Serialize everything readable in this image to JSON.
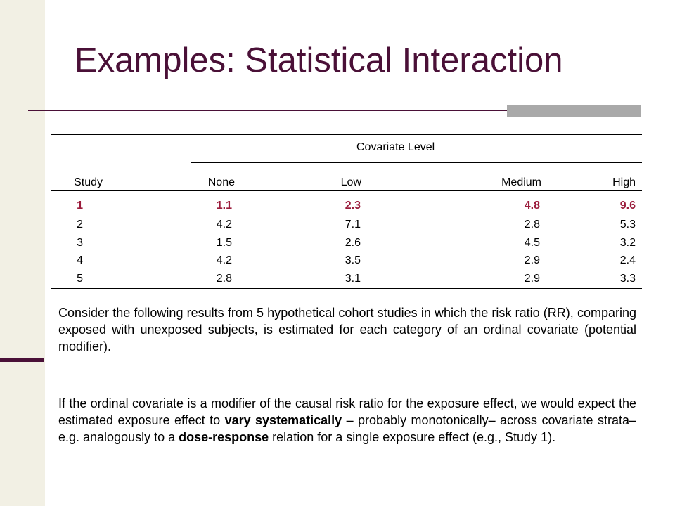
{
  "slide": {
    "title": "Examples: Statistical Interaction"
  },
  "table": {
    "group_header": "Covariate Level",
    "columns": [
      "Study",
      "None",
      "Low",
      "Medium",
      "High"
    ],
    "rows": [
      [
        "1",
        "1.1",
        "2.3",
        "4.8",
        "9.6"
      ],
      [
        "2",
        "4.2",
        "7.1",
        "2.8",
        "5.3"
      ],
      [
        "3",
        "1.5",
        "2.6",
        "4.5",
        "3.2"
      ],
      [
        "4",
        "4.2",
        "3.5",
        "2.9",
        "2.4"
      ],
      [
        "5",
        "2.8",
        "3.1",
        "2.9",
        "3.3"
      ]
    ],
    "highlight_color": "#9b1c3c"
  },
  "body": {
    "para1": "Consider the following results from 5 hypothetical cohort studies in which the risk ratio (RR), comparing exposed with unexposed subjects, is estimated for each category of an ordinal covariate (potential modifier).",
    "para2": {
      "part1": "If the ordinal covariate is a modifier of the causal risk ratio for the exposure effect, we would expect the estimated exposure effect to ",
      "bold1": "vary systematically",
      "part2": " – probably monotonically– across covariate strata– e.g. analogously to a ",
      "bold2": "dose-response",
      "part3": " relation for a single exposure effect (e.g., Study 1)."
    }
  },
  "theme": {
    "title_color": "#4a1037",
    "side_panel_color": "#f2f0e4",
    "accent_bar_color": "#a9a9a9"
  }
}
